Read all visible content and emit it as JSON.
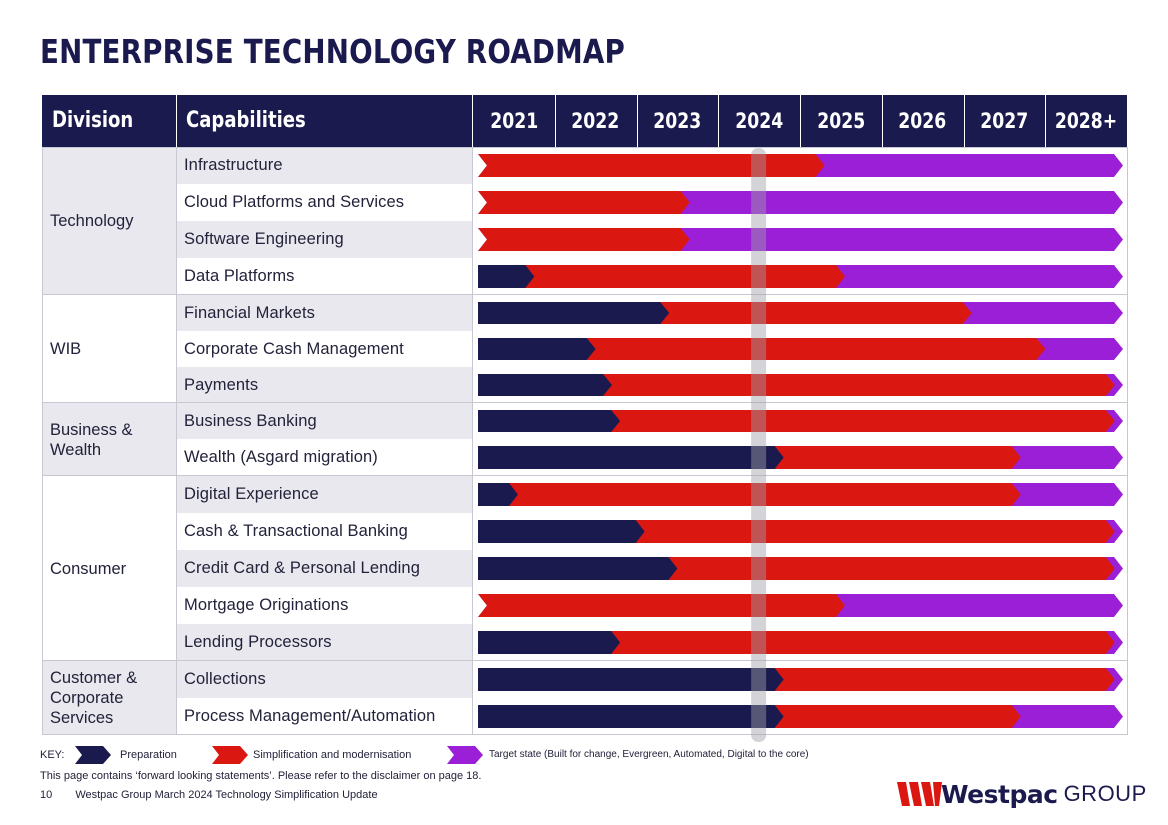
{
  "title": "ENTERPRISE TECHNOLOGY ROADMAP",
  "header": {
    "division": "Division",
    "capabilities": "Capabilities"
  },
  "years": [
    "2021",
    "2022",
    "2023",
    "2024",
    "2025",
    "2026",
    "2027",
    "2028+"
  ],
  "colors": {
    "preparation": "#1b1a4e",
    "simplification": "#da1710",
    "target": "#9a1fd6",
    "header": "#1b1a4e",
    "current_marker": "#a0a0a8"
  },
  "current_year_marker": 2024.5,
  "timeline_range": [
    2021.0,
    2029.0
  ],
  "divisions": [
    {
      "name": "Technology",
      "capabilities": [
        {
          "name": "Infrastructure",
          "prep_end": 2021.0,
          "simp_end": 2025.3
        },
        {
          "name": "Cloud Platforms and Services",
          "prep_end": 2021.0,
          "simp_end": 2023.65
        },
        {
          "name": "Software Engineering",
          "prep_end": 2021.0,
          "simp_end": 2023.65
        },
        {
          "name": "Data Platforms",
          "prep_end": 2021.75,
          "simp_end": 2025.55
        }
      ]
    },
    {
      "name": "WIB",
      "capabilities": [
        {
          "name": "Financial Markets",
          "prep_end": 2023.4,
          "simp_end": 2027.1
        },
        {
          "name": "Corporate Cash Management",
          "prep_end": 2022.5,
          "simp_end": 2028.0
        },
        {
          "name": "Payments",
          "prep_end": 2022.7,
          "simp_end": 2028.85
        }
      ]
    },
    {
      "name": "Business & Wealth",
      "capabilities": [
        {
          "name": "Business Banking",
          "prep_end": 2022.8,
          "simp_end": 2028.85
        },
        {
          "name": "Wealth (Asgard migration)",
          "prep_end": 2024.8,
          "simp_end": 2027.7
        }
      ]
    },
    {
      "name": "Consumer",
      "capabilities": [
        {
          "name": "Digital Experience",
          "prep_end": 2021.55,
          "simp_end": 2027.7
        },
        {
          "name": "Cash & Transactional Banking",
          "prep_end": 2023.1,
          "simp_end": 2028.85
        },
        {
          "name": "Credit Card & Personal Lending",
          "prep_end": 2023.5,
          "simp_end": 2028.85
        },
        {
          "name": "Mortgage Originations",
          "prep_end": 2021.0,
          "simp_end": 2025.55
        },
        {
          "name": "Lending Processors",
          "prep_end": 2022.8,
          "simp_end": 2028.85
        }
      ]
    },
    {
      "name": "Customer & Corporate Services",
      "capabilities": [
        {
          "name": "Collections",
          "prep_end": 2024.8,
          "simp_end": 2028.85
        },
        {
          "name": "Process Management/Automation",
          "prep_end": 2024.8,
          "simp_end": 2027.7
        }
      ]
    }
  ],
  "key": {
    "label": "KEY:",
    "preparation": "Preparation",
    "simplification": "Simplification and modernisation",
    "target": "Target state (Built for change, Evergreen, Automated, Digital to the core)"
  },
  "disclaimer": "This page contains ‘forward looking statements’. Please refer to the disclaimer on page 18.",
  "footer": {
    "page_number": "10",
    "text": "Westpac Group March 2024 Technology Simplification Update"
  },
  "logo": {
    "brand": "Westpac",
    "suffix": "GROUP"
  }
}
